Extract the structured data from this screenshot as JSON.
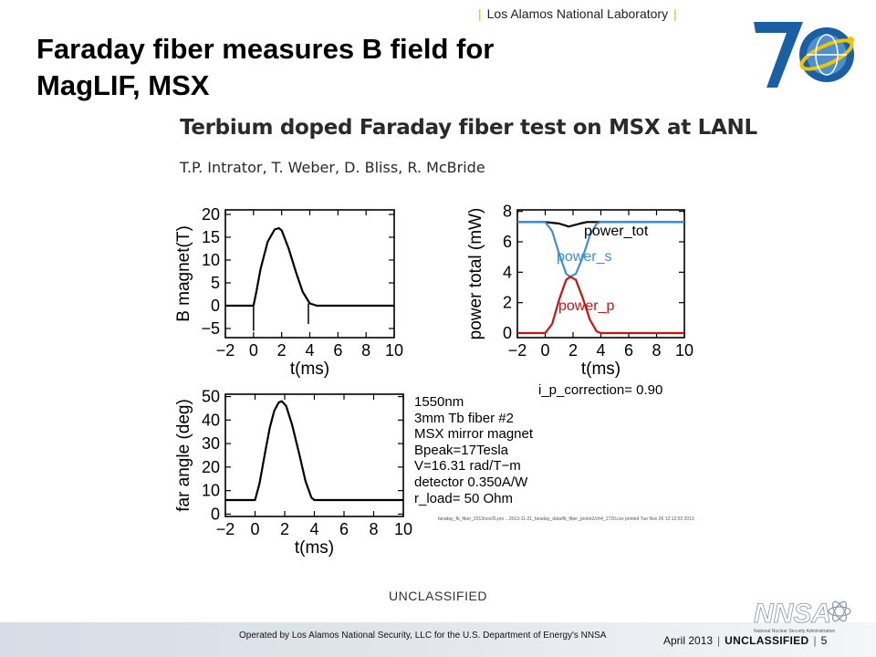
{
  "header": {
    "lab_name": "Los Alamos National Laboratory"
  },
  "slide": {
    "title_line1": "Faraday fiber measures B field for",
    "title_line2": "MagLIF, MSX"
  },
  "logo_70": {
    "icon": "anniversary-70-globe-logo",
    "colors": {
      "blue": "#1a5fa3",
      "yellow": "#f2c400"
    }
  },
  "figure": {
    "title": "Terbium doped Faraday fiber test on MSX at LANL",
    "authors": "T.P. Intrator, T. Weber, D. Bliss, R. McBride",
    "parameters": [
      "1550nm",
      "3mm Tb fiber #2",
      "MSX mirror magnet",
      "Bpeak=17Tesla",
      "V=16.31 rad/T−m",
      "detector  0.350A/W",
      "r_load= 50 Ohm"
    ],
    "footnote": "faraday_fb_fiber_2013nov26.pro  ...2013-11-21_faraday_data/fb_fiber_probe2/ch4_1720.csv  printed Tue Nov 26 12:12:03 2013",
    "i_p_correction": "i_p_correction= 0.90"
  },
  "chart_data": [
    {
      "type": "line",
      "xlabel": "t(ms)",
      "ylabel": "B magnet(T)",
      "xlim": [
        -2,
        10
      ],
      "ylim": [
        -7,
        21
      ],
      "xticks": [
        "−2",
        "0",
        "2",
        "4",
        "6",
        "8",
        "10"
      ],
      "yticks": [
        "−5",
        "0",
        "5",
        "10",
        "15",
        "20"
      ],
      "series": [
        {
          "color": "#000000",
          "x": [
            -2,
            0,
            0.2,
            0.5,
            1,
            1.5,
            1.8,
            2,
            2.5,
            3,
            3.5,
            4,
            4.5,
            6,
            8,
            10
          ],
          "y": [
            0,
            0,
            3,
            8,
            14,
            16.7,
            17,
            16.5,
            12.5,
            7.5,
            3,
            0.5,
            0,
            0,
            0,
            0
          ]
        }
      ]
    },
    {
      "type": "line",
      "xlabel": "t(ms)",
      "ylabel": "power total (mW)",
      "xlim": [
        -2,
        10
      ],
      "ylim": [
        -0.3,
        8.1
      ],
      "xticks": [
        "−2",
        "0",
        "2",
        "4",
        "6",
        "8",
        "10"
      ],
      "yticks": [
        "0",
        "2",
        "4",
        "6",
        "8"
      ],
      "series": [
        {
          "name": "power_tot",
          "color": "#000000",
          "x": [
            -2,
            0,
            1,
            1.7,
            2.5,
            3,
            4,
            6,
            8,
            10
          ],
          "y": [
            7.3,
            7.3,
            7.2,
            7.0,
            7.2,
            7.3,
            7.3,
            7.3,
            7.3,
            7.3
          ]
        },
        {
          "name": "power_s",
          "color": "#3a8fd8",
          "x": [
            -2,
            0,
            0.5,
            1,
            1.5,
            1.8,
            2.2,
            2.7,
            3.2,
            3.7,
            4,
            6,
            8,
            10
          ],
          "y": [
            7.3,
            7.3,
            6.7,
            5.2,
            3.9,
            3.7,
            3.9,
            5.0,
            6.4,
            7.2,
            7.3,
            7.3,
            7.3,
            7.3
          ]
        },
        {
          "name": "power_p",
          "color": "#d01010",
          "x": [
            -2,
            0,
            0.5,
            1,
            1.5,
            1.8,
            2.2,
            2.7,
            3.2,
            3.7,
            4,
            6,
            8,
            10
          ],
          "y": [
            0,
            0,
            0.6,
            2.2,
            3.5,
            3.7,
            3.5,
            2.3,
            0.9,
            0.1,
            0,
            0,
            0,
            0
          ]
        }
      ]
    },
    {
      "type": "line",
      "xlabel": "t(ms)",
      "ylabel": "far angle (deg)",
      "xlim": [
        -2,
        10
      ],
      "ylim": [
        -1,
        51
      ],
      "xticks": [
        "−2",
        "0",
        "2",
        "4",
        "6",
        "8",
        "10"
      ],
      "yticks": [
        "0",
        "10",
        "20",
        "30",
        "40",
        "50"
      ],
      "series": [
        {
          "color": "#000000",
          "x": [
            -2,
            0,
            0.3,
            0.7,
            1,
            1.3,
            1.6,
            1.8,
            2.1,
            2.5,
            3,
            3.4,
            3.8,
            4,
            6,
            8,
            10
          ],
          "y": [
            6,
            6,
            13,
            27,
            37,
            44,
            47.5,
            48,
            46,
            38,
            25,
            14,
            7,
            6,
            6,
            6,
            6
          ]
        }
      ]
    }
  ],
  "footer": {
    "classification_center": "UNCLASSIFIED",
    "operated_by": "Operated by Los Alamos National Security, LLC for the U.S. Department of Energy's NNSA",
    "date": "April 2013",
    "classification": "UNCLASSIFIED",
    "page": "5",
    "nnsa_logo": "NNSA",
    "nnsa_subtitle": "National Nuclear Security Administration"
  }
}
